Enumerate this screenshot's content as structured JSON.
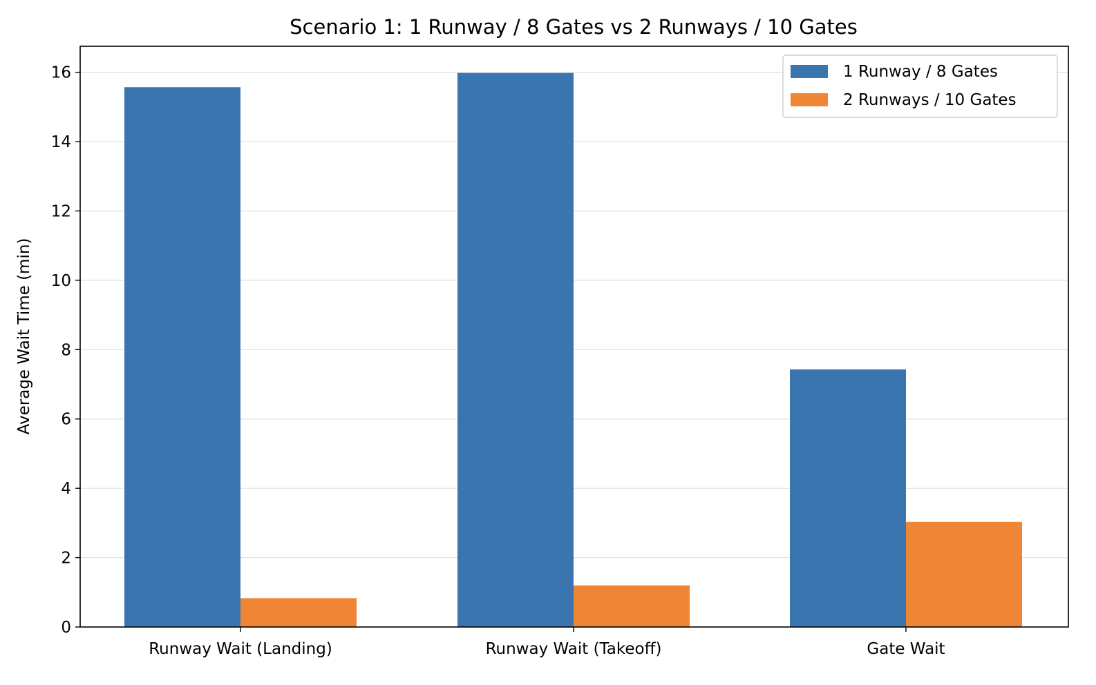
{
  "chart_data": {
    "type": "bar",
    "title": "Scenario 1: 1 Runway / 8 Gates vs 2 Runways / 10 Gates",
    "xlabel": "",
    "ylabel": "Average Wait Time (min)",
    "categories": [
      "Runway Wait (Landing)",
      "Runway Wait (Takeoff)",
      "Gate Wait"
    ],
    "series": [
      {
        "name": "1 Runway / 8 Gates",
        "color": "#3a75af",
        "values": [
          15.57,
          15.98,
          7.43
        ]
      },
      {
        "name": "2 Runways / 10 Gates",
        "color": "#ef8636",
        "values": [
          0.83,
          1.2,
          3.03
        ]
      }
    ],
    "ylim": [
      0,
      16.75
    ],
    "yticks": [
      0,
      2,
      4,
      6,
      8,
      10,
      12,
      14,
      16
    ],
    "grid": "horizontal",
    "legend_position": "top-right"
  }
}
